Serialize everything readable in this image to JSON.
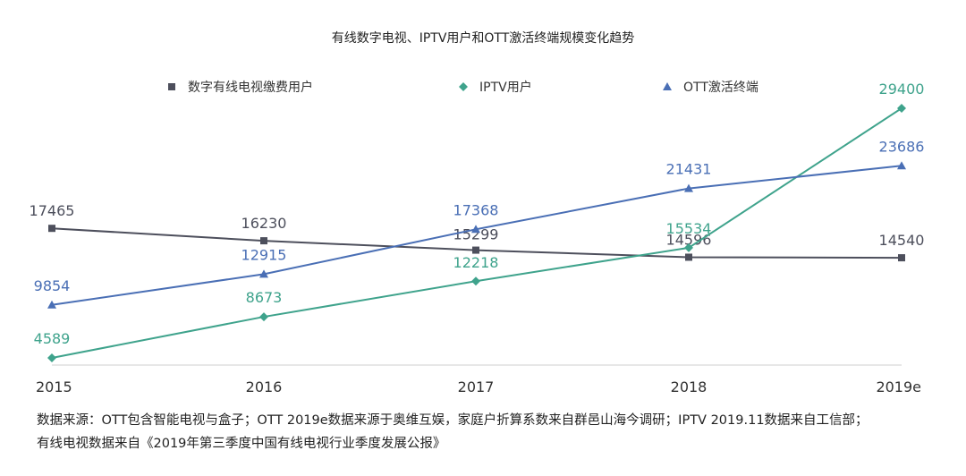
{
  "chart_data": {
    "type": "line",
    "title": "有线数字电视、IPTV用户和OTT激活终端规模变化趋势",
    "categories": [
      "2015",
      "2016",
      "2017",
      "2018",
      "2019e"
    ],
    "ylim": [
      0,
      30000
    ],
    "grid": false,
    "legend_position": "top",
    "series": [
      {
        "name": "数字有线电视缴费用户",
        "values": [
          17465,
          16230,
          15299,
          14596,
          14540
        ],
        "color": "#4d4f5c",
        "marker": "square"
      },
      {
        "name": "IPTV用户",
        "values": [
          4589,
          8673,
          12218,
          15534,
          29400
        ],
        "color": "#3fa38c",
        "marker": "diamond"
      },
      {
        "name": "OTT激活终端",
        "values": [
          9854,
          12915,
          17368,
          21431,
          23686
        ],
        "color": "#4a6fb5",
        "marker": "triangle"
      }
    ]
  },
  "notes": {
    "line1": "数据来源：OTT包含智能电视与盒子；OTT 2019e数据来源于奥维互娱，家庭户折算系数来自群邑山海今调研；IPTV 2019.11数据来自工信部；",
    "line2": "有线电视数据来自《2019年第三季度中国有线电视行业季度发展公报》"
  }
}
